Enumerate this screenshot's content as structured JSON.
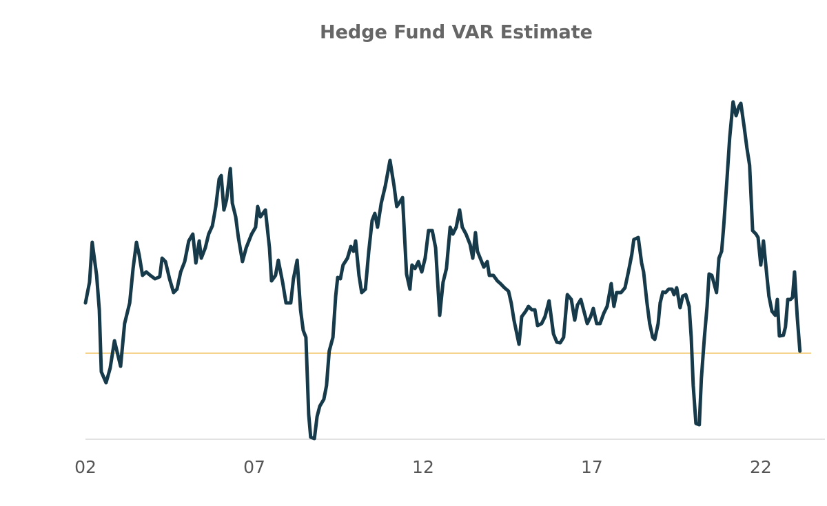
{
  "chart_data": {
    "type": "line",
    "title": "Hedge Fund VAR Estimate",
    "xlim": [
      2,
      23.9
    ],
    "ylim": [
      0,
      55
    ],
    "xticks": [
      {
        "value": 2,
        "label": "02"
      },
      {
        "value": 7,
        "label": "07"
      },
      {
        "value": 12,
        "label": "12"
      },
      {
        "value": 17,
        "label": "17"
      },
      {
        "value": 22,
        "label": "22"
      }
    ],
    "reference_line": {
      "value": 12.5,
      "color": "#f0c568"
    },
    "series": [
      {
        "color": "#163a4a",
        "x": [
          2.0,
          2.12,
          2.2,
          2.33,
          2.41,
          2.47,
          2.61,
          2.73,
          2.86,
          3.04,
          3.16,
          3.31,
          3.41,
          3.51,
          3.59,
          3.69,
          3.8,
          3.92,
          4.06,
          4.2,
          4.27,
          4.37,
          4.49,
          4.61,
          4.71,
          4.82,
          4.94,
          5.06,
          5.18,
          5.27,
          5.37,
          5.43,
          5.55,
          5.65,
          5.76,
          5.86,
          5.96,
          6.02,
          6.1,
          6.18,
          6.29,
          6.35,
          6.45,
          6.53,
          6.65,
          6.76,
          6.92,
          7.04,
          7.1,
          7.18,
          7.33,
          7.45,
          7.51,
          7.63,
          7.71,
          7.84,
          7.94,
          8.08,
          8.16,
          8.27,
          8.37,
          8.45,
          8.53,
          8.61,
          8.67,
          8.78,
          8.86,
          8.94,
          9.06,
          9.14,
          9.22,
          9.33,
          9.41,
          9.47,
          9.55,
          9.63,
          9.76,
          9.86,
          9.94,
          10.0,
          10.1,
          10.18,
          10.29,
          10.39,
          10.49,
          10.57,
          10.65,
          10.76,
          10.88,
          11.02,
          11.14,
          11.22,
          11.29,
          11.39,
          11.51,
          11.61,
          11.67,
          11.76,
          11.86,
          11.96,
          12.06,
          12.16,
          12.27,
          12.37,
          12.49,
          12.59,
          12.69,
          12.8,
          12.88,
          12.98,
          13.08,
          13.16,
          13.27,
          13.39,
          13.47,
          13.55,
          13.61,
          13.69,
          13.8,
          13.9,
          13.96,
          14.08,
          14.2,
          14.29,
          14.41,
          14.53,
          14.61,
          14.69,
          14.84,
          14.92,
          15.04,
          15.12,
          15.22,
          15.31,
          15.39,
          15.51,
          15.61,
          15.73,
          15.86,
          15.96,
          16.06,
          16.16,
          16.27,
          16.39,
          16.49,
          16.57,
          16.67,
          16.86,
          16.96,
          17.04,
          17.14,
          17.24,
          17.35,
          17.45,
          17.57,
          17.65,
          17.73,
          17.86,
          17.98,
          18.08,
          18.18,
          18.24,
          18.37,
          18.47,
          18.53,
          18.63,
          18.71,
          18.8,
          18.86,
          18.96,
          19.02,
          19.1,
          19.18,
          19.27,
          19.37,
          19.43,
          19.51,
          19.61,
          19.69,
          19.78,
          19.88,
          19.94,
          20.0,
          20.08,
          20.18,
          20.24,
          20.33,
          20.41,
          20.47,
          20.55,
          20.69,
          20.76,
          20.84,
          20.9,
          21.0,
          21.08,
          21.18,
          21.27,
          21.35,
          21.41,
          21.51,
          21.59,
          21.67,
          21.76,
          21.86,
          21.92,
          22.0,
          22.08,
          22.16,
          22.24,
          22.33,
          22.43,
          22.49,
          22.55,
          22.67,
          22.73,
          22.8,
          22.88,
          22.94,
          23.0,
          23.08,
          23.16
        ],
        "values": [
          19.8,
          22.8,
          28.6,
          23.8,
          18.8,
          9.8,
          8.2,
          10.3,
          14.3,
          10.6,
          16.8,
          19.8,
          24.8,
          28.6,
          26.8,
          23.8,
          24.3,
          23.8,
          23.3,
          23.6,
          26.3,
          25.8,
          23.3,
          21.3,
          21.8,
          24.3,
          25.8,
          28.8,
          29.8,
          25.6,
          28.8,
          26.3,
          27.8,
          29.8,
          31.0,
          33.8,
          37.8,
          38.3,
          33.3,
          34.8,
          39.3,
          34.3,
          32.3,
          29.3,
          25.8,
          27.8,
          29.8,
          30.8,
          33.8,
          32.3,
          33.3,
          27.8,
          23.0,
          23.8,
          26.0,
          22.8,
          19.8,
          19.8,
          23.3,
          26.0,
          18.8,
          15.8,
          14.8,
          3.6,
          0.3,
          0.1,
          3.3,
          4.8,
          5.8,
          7.8,
          12.8,
          14.8,
          20.8,
          23.5,
          23.3,
          25.3,
          26.3,
          28.0,
          27.3,
          28.8,
          23.8,
          21.3,
          21.8,
          27.3,
          31.8,
          32.8,
          30.8,
          34.3,
          36.8,
          40.5,
          36.8,
          33.8,
          34.3,
          35.1,
          24.0,
          21.8,
          25.3,
          24.8,
          25.8,
          24.3,
          26.3,
          30.3,
          30.3,
          27.8,
          18.0,
          22.8,
          24.8,
          30.8,
          29.8,
          30.8,
          33.3,
          30.8,
          29.8,
          28.3,
          26.3,
          30.0,
          27.3,
          26.3,
          25.0,
          25.8,
          23.8,
          23.8,
          23.0,
          22.6,
          22.0,
          21.5,
          19.8,
          17.3,
          13.8,
          17.8,
          18.6,
          19.3,
          18.8,
          18.8,
          16.5,
          16.8,
          17.8,
          20.1,
          15.3,
          14.1,
          14.0,
          14.8,
          21.0,
          20.3,
          17.3,
          19.5,
          20.3,
          16.8,
          17.8,
          19.0,
          16.8,
          16.8,
          18.3,
          19.3,
          22.6,
          19.3,
          21.3,
          21.3,
          22.0,
          24.3,
          26.8,
          29.0,
          29.3,
          25.6,
          24.3,
          19.8,
          16.8,
          14.8,
          14.5,
          16.8,
          19.8,
          21.4,
          21.3,
          21.8,
          21.8,
          21.0,
          22.0,
          19.1,
          20.8,
          21.0,
          19.3,
          14.8,
          7.8,
          2.3,
          2.1,
          8.8,
          14.8,
          19.3,
          24.0,
          23.8,
          21.3,
          26.3,
          27.3,
          30.8,
          37.8,
          43.8,
          49.0,
          47.0,
          48.3,
          48.8,
          45.3,
          42.3,
          39.8,
          30.3,
          29.8,
          29.3,
          25.3,
          28.8,
          24.8,
          20.8,
          18.6,
          18.0,
          20.3,
          15.0,
          15.1,
          16.3,
          20.3,
          20.3,
          20.6,
          24.3,
          17.8,
          12.8
        ]
      }
    ]
  }
}
